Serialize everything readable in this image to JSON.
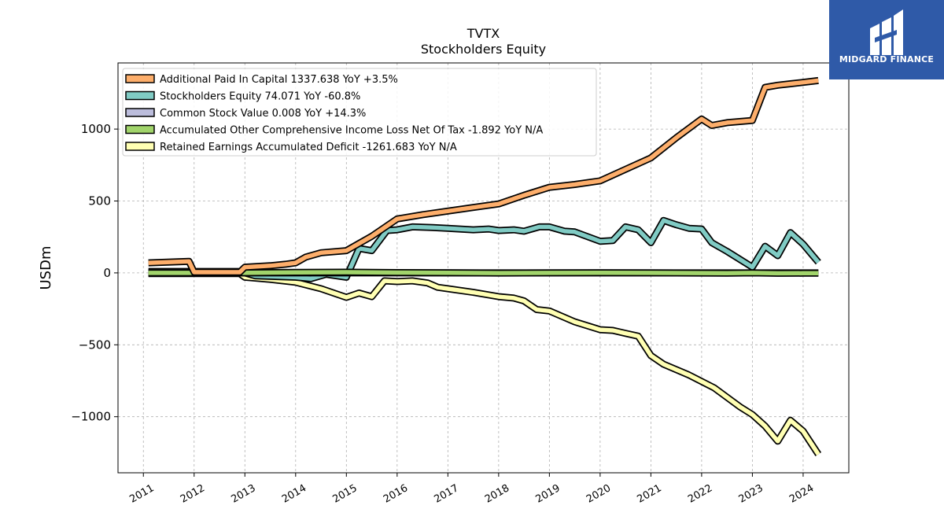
{
  "chart_title": "TVTX",
  "chart_subtitle": "Stockholders  Equity",
  "brand": {
    "name": "MIDGARD FINANCE",
    "color": "#2f5aa8"
  },
  "chart_data": {
    "type": "line",
    "ylabel": "USDm",
    "xlabel": "",
    "xlim": [
      2010.5,
      2024.9
    ],
    "ylim": [
      -1390,
      1460
    ],
    "x_ticks": [
      2011,
      2012,
      2013,
      2014,
      2015,
      2016,
      2017,
      2018,
      2019,
      2020,
      2021,
      2022,
      2023,
      2024
    ],
    "y_ticks": [
      -1000,
      -500,
      0,
      500,
      1000
    ],
    "y_tick_labels": [
      "−1000",
      "−500",
      "0",
      "500",
      "1000"
    ],
    "grid": true,
    "legend_position": "top-left",
    "series": [
      {
        "name": "Additional Paid In Capital  1337.638 YoY +3.5%",
        "color": "#fdae6b",
        "x": [
          2011.1,
          2011.9,
          2012.0,
          2012.9,
          2013.0,
          2013.5,
          2013.8,
          2014.0,
          2014.2,
          2014.5,
          2015.0,
          2015.5,
          2016.0,
          2016.5,
          2017.0,
          2017.5,
          2018.0,
          2018.5,
          2019.0,
          2019.5,
          2020.0,
          2020.5,
          2021.0,
          2021.5,
          2022.0,
          2022.2,
          2022.5,
          2023.0,
          2023.25,
          2023.5,
          2023.75,
          2024.0,
          2024.3
        ],
        "y": [
          70,
          80,
          5,
          5,
          40,
          50,
          60,
          70,
          110,
          140,
          155,
          255,
          375,
          405,
          430,
          455,
          480,
          540,
          595,
          615,
          640,
          720,
          800,
          940,
          1070,
          1025,
          1045,
          1060,
          1290,
          1305,
          1315,
          1325,
          1337.638
        ]
      },
      {
        "name": "Stockholders Equity  74.071 YoY -60.8%",
        "color": "#80cbc4",
        "x": [
          2011.1,
          2012.9,
          2013.2,
          2013.6,
          2014.0,
          2014.3,
          2014.6,
          2015.0,
          2015.25,
          2015.5,
          2015.8,
          2016.0,
          2016.3,
          2016.7,
          2017.0,
          2017.5,
          2017.8,
          2018.0,
          2018.3,
          2018.5,
          2018.8,
          2019.0,
          2019.3,
          2019.5,
          2020.0,
          2020.25,
          2020.5,
          2020.75,
          2021.0,
          2021.25,
          2021.5,
          2021.75,
          2022.0,
          2022.2,
          2022.5,
          2023.0,
          2023.25,
          2023.5,
          2023.75,
          2024.0,
          2024.3
        ],
        "y": [
          10,
          10,
          -20,
          -25,
          -30,
          -40,
          -10,
          -30,
          170,
          155,
          295,
          300,
          320,
          315,
          310,
          300,
          305,
          295,
          300,
          290,
          320,
          320,
          290,
          285,
          220,
          225,
          320,
          300,
          210,
          365,
          335,
          310,
          305,
          210,
          150,
          40,
          185,
          120,
          280,
          200,
          74.071
        ]
      },
      {
        "name": "Common Stock Value  0.008 YoY +14.3%",
        "color": "#bcbddc",
        "x": [
          2011.1,
          2013.0,
          2016.0,
          2019.0,
          2022.0,
          2024.3
        ],
        "y": [
          0.005,
          0.006,
          0.006,
          0.007,
          0.007,
          0.008
        ]
      },
      {
        "name": "Accumulated Other Comprehensive Income Loss Net Of Tax  -1.892 YoY N/A",
        "color": "#a1d46b",
        "x": [
          2011.1,
          2012.9,
          2013.5,
          2014.0,
          2015.0,
          2016.0,
          2017.0,
          2018.0,
          2019.0,
          2020.0,
          2021.0,
          2022.0,
          2022.5,
          2023.0,
          2023.5,
          2024.0,
          2024.3
        ],
        "y": [
          0,
          0,
          2,
          3,
          5,
          2,
          1,
          -1,
          0,
          1,
          0,
          -1,
          -2,
          0,
          -3,
          -2,
          -1.892
        ]
      },
      {
        "name": "Retained Earnings Accumulated Deficit  -1261.683 YoY N/A",
        "color": "#ffffb3",
        "x": [
          2011.1,
          2012.9,
          2013.0,
          2013.5,
          2014.0,
          2014.5,
          2015.0,
          2015.25,
          2015.5,
          2015.75,
          2016.0,
          2016.3,
          2016.6,
          2016.8,
          2017.0,
          2017.5,
          2018.0,
          2018.3,
          2018.5,
          2018.75,
          2019.0,
          2019.5,
          2020.0,
          2020.25,
          2020.5,
          2020.75,
          2021.0,
          2021.25,
          2021.75,
          2022.25,
          2022.75,
          2023.0,
          2023.25,
          2023.5,
          2023.75,
          2024.0,
          2024.3
        ],
        "y": [
          -5,
          -5,
          -30,
          -45,
          -65,
          -110,
          -170,
          -140,
          -165,
          -55,
          -60,
          -55,
          -70,
          -100,
          -110,
          -135,
          -165,
          -175,
          -195,
          -255,
          -265,
          -340,
          -395,
          -400,
          -420,
          -440,
          -575,
          -635,
          -710,
          -800,
          -930,
          -985,
          -1065,
          -1170,
          -1025,
          -1100,
          -1261.683
        ]
      }
    ]
  }
}
